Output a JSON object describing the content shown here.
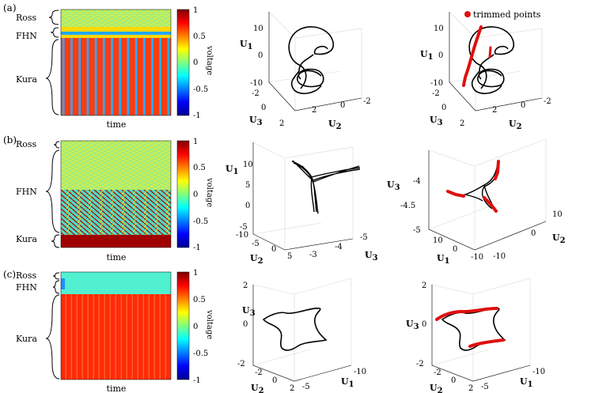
{
  "figure": {
    "rows": [
      {
        "label": "(a)",
        "heatmap": {
          "groups": [
            "Ross",
            "FHN",
            "Kura"
          ],
          "xlabel": "time",
          "colorbar": {
            "label": "voltage",
            "ticks": [
              "1",
              "0.5",
              "0",
              "-0.5",
              "-1"
            ]
          }
        },
        "plots": [
          {
            "axes": [
              "U",
              "1",
              "U",
              "3",
              "U",
              "2"
            ],
            "ticks": {
              "z": [
                "10",
                "0",
                "-10"
              ],
              "a": [
                "-2",
                "0",
                "2"
              ],
              "b": [
                "2",
                "0",
                "-2"
              ]
            }
          },
          {
            "axes": [
              "U",
              "1",
              "U",
              "3",
              "U",
              "2"
            ],
            "ticks": {
              "z": [
                "10",
                "0",
                "-10"
              ],
              "a": [
                "-2",
                "0",
                "2"
              ],
              "b": [
                "2",
                "0",
                "-2"
              ]
            },
            "legend": "trimmed points"
          }
        ]
      },
      {
        "label": "(b)",
        "heatmap": {
          "groups": [
            "Ross",
            "FHN",
            "Kura"
          ],
          "xlabel": "time",
          "colorbar": {
            "label": "voltage",
            "ticks": [
              "1",
              "0.5",
              "0",
              "-0.5",
              "-1"
            ]
          }
        },
        "plots": [
          {
            "axes": [
              "U",
              "1",
              "U",
              "2",
              "U",
              "3"
            ],
            "ticks": {
              "z": [
                "10",
                "5",
                "0",
                "-5",
                "-10"
              ],
              "a": [
                "-5",
                "0",
                "5"
              ],
              "b": [
                "-3",
                "-4",
                "-5"
              ]
            }
          },
          {
            "axes": [
              "U",
              "3",
              "U",
              "1",
              "U",
              "2"
            ],
            "ticks": {
              "z": [
                "-4",
                "-4.5",
                "-5"
              ],
              "a": [
                "10",
                "0",
                "-10"
              ],
              "b": [
                "-10",
                "0",
                "10"
              ]
            }
          }
        ]
      },
      {
        "label": "(c)",
        "heatmap": {
          "groups": [
            "Ross",
            "FHN",
            "Kura"
          ],
          "xlabel": "time",
          "colorbar": {
            "label": "voltage",
            "ticks": [
              "1",
              "0.5",
              "0",
              "-0.5",
              "-1"
            ]
          }
        },
        "plots": [
          {
            "axes": [
              "U",
              "3",
              "U",
              "2",
              "U",
              "1"
            ],
            "ticks": {
              "z": [
                "2",
                "0",
                "-2"
              ],
              "a": [
                "-2",
                "0",
                "2"
              ],
              "b": [
                "-5",
                "-10"
              ]
            }
          },
          {
            "axes": [
              "U",
              "3",
              "U",
              "2",
              "U",
              "1"
            ],
            "ticks": {
              "z": [
                "2",
                "0",
                "-2"
              ],
              "a": [
                "-2",
                "0",
                "2"
              ],
              "b": [
                "-5",
                "-10"
              ]
            }
          }
        ]
      }
    ],
    "colors": {
      "trimmed": "#e01010",
      "trajectory": "#000000"
    }
  }
}
